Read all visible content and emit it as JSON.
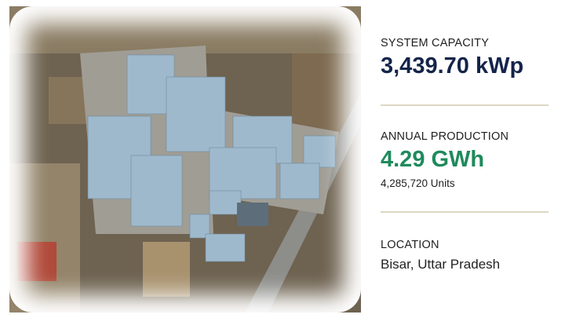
{
  "image": {
    "description_icon": "aerial-solar-site-photo"
  },
  "capacity": {
    "label": "SYSTEM CAPACITY",
    "value": "3,439.70 kWp"
  },
  "production": {
    "label": "ANNUAL PRODUCTION",
    "value": "4.29 GWh",
    "units": "4,285,720 Units"
  },
  "location": {
    "label": "LOCATION",
    "value": "Bisar, Uttar Pradesh"
  },
  "colors": {
    "navy": "#14244a",
    "green": "#1f8a5c",
    "divider": "#ddd7c3"
  }
}
